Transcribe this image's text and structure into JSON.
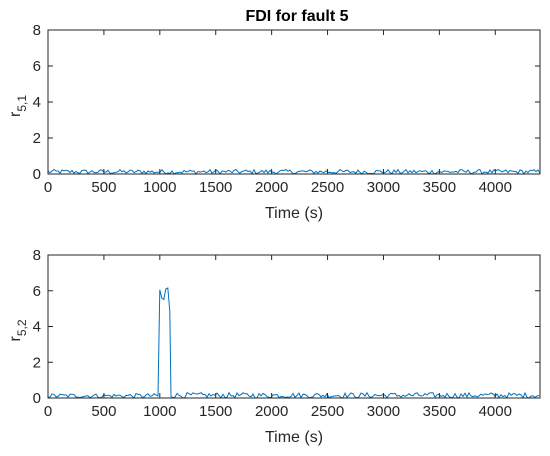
{
  "chart_data": [
    {
      "type": "line",
      "title": "FDI for fault 5",
      "xlabel": "Time (s)",
      "ylabel_base": "r",
      "ylabel_sub": "5,1",
      "xlim": [
        0,
        4400
      ],
      "ylim": [
        0,
        8
      ],
      "xticks": [
        "0",
        "500",
        "1000",
        "1500",
        "2000",
        "2500",
        "3000",
        "3500",
        "4000"
      ],
      "yticks": [
        "0",
        "2",
        "4",
        "6",
        "8"
      ],
      "line_color": "#0072BD",
      "series": [
        {
          "segments": [
            {
              "x_start": 0,
              "x_end": 4400,
              "y_low": 0.0,
              "y_high": 0.25
            }
          ]
        }
      ]
    },
    {
      "type": "line",
      "title": "",
      "xlabel": "Time (s)",
      "ylabel_base": "r",
      "ylabel_sub": "5,2",
      "xlim": [
        0,
        4400
      ],
      "ylim": [
        0,
        8
      ],
      "xticks": [
        "0",
        "500",
        "1000",
        "1500",
        "2000",
        "2500",
        "3000",
        "3500",
        "4000"
      ],
      "yticks": [
        "0",
        "2",
        "4",
        "6",
        "8"
      ],
      "line_color": "#0072BD",
      "series": [
        {
          "segments": [
            {
              "x_start": 0,
              "x_end": 1000,
              "y_low": 0.0,
              "y_high": 0.25
            },
            {
              "x_start": 1000,
              "x_end": 1100,
              "y_low": 4.0,
              "y_high": 7.0
            },
            {
              "x_start": 1100,
              "x_end": 4400,
              "y_low": 0.0,
              "y_high": 0.3
            }
          ]
        }
      ]
    }
  ]
}
